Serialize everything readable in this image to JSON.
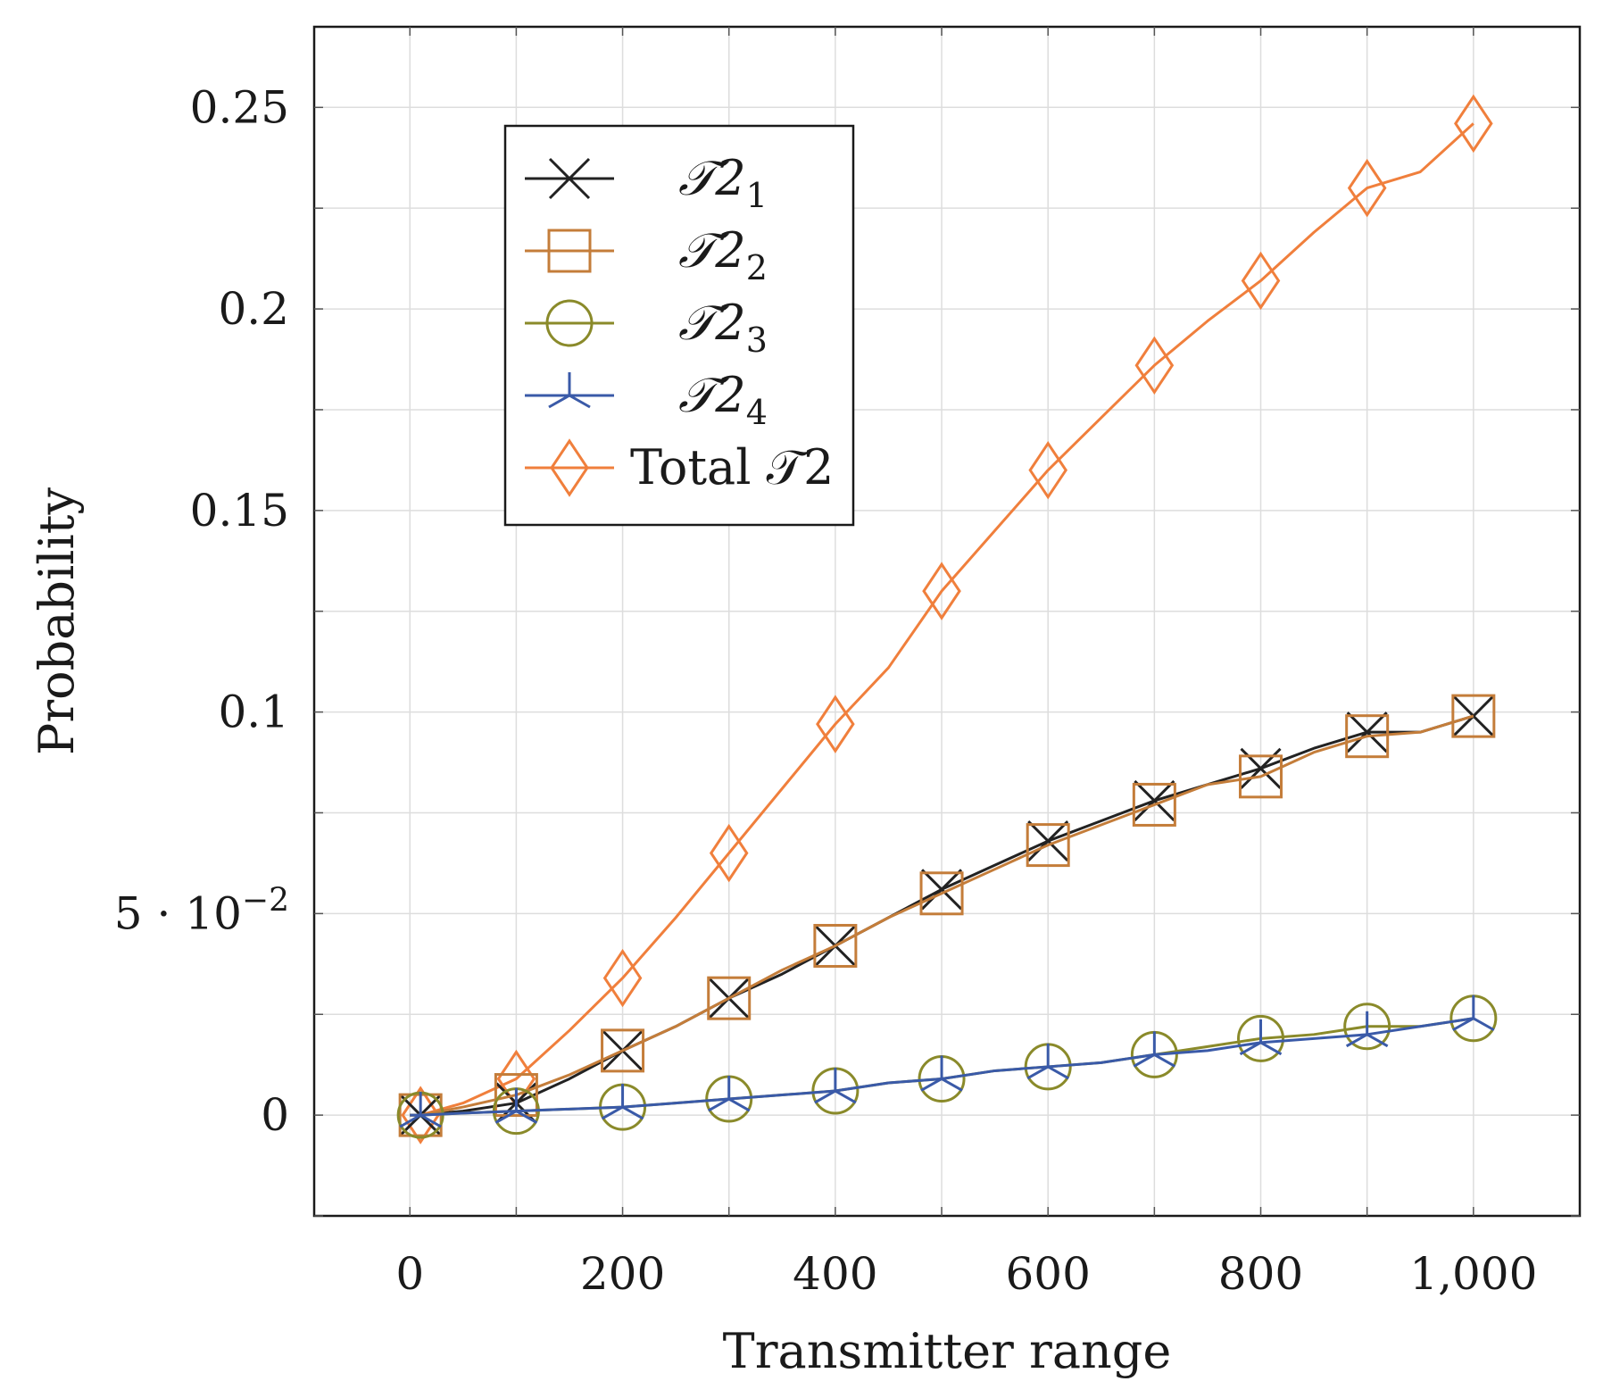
{
  "chart_data": {
    "type": "line",
    "title": "",
    "xlabel": "Transmitter range",
    "ylabel": "Probability",
    "xlim": [
      -90,
      1100
    ],
    "ylim": [
      -0.025,
      0.27
    ],
    "grid": true,
    "legend_position": "top-left",
    "x_ticks": [
      0,
      200,
      400,
      600,
      800,
      1000
    ],
    "x_tick_labels": [
      "0",
      "200",
      "400",
      "600",
      "800",
      "1,000"
    ],
    "y_ticks": [
      0,
      0.05,
      0.1,
      0.15,
      0.2,
      0.25
    ],
    "y_tick_labels": [
      {
        "text": "0"
      },
      {
        "text": "5 · 10",
        "sup": "−2"
      },
      {
        "text": "0.1"
      },
      {
        "text": "0.15"
      },
      {
        "text": "0.2"
      },
      {
        "text": "0.25"
      }
    ],
    "series": [
      {
        "name": "𝒯2",
        "sub": "1",
        "color": "#222222",
        "marker": "x",
        "x": [
          0,
          10,
          50,
          100,
          150,
          200,
          250,
          300,
          350,
          400,
          450,
          500,
          550,
          600,
          650,
          700,
          750,
          800,
          850,
          900,
          950,
          1000
        ],
        "y": [
          0,
          0,
          0.001,
          0.003,
          0.009,
          0.016,
          0.022,
          0.029,
          0.035,
          0.042,
          0.049,
          0.056,
          0.062,
          0.068,
          0.073,
          0.078,
          0.082,
          0.086,
          0.091,
          0.095,
          0.095,
          0.099
        ],
        "marker_x": [
          10,
          100,
          200,
          300,
          400,
          500,
          600,
          700,
          800,
          900,
          1000
        ],
        "marker_y": [
          0,
          0.003,
          0.016,
          0.029,
          0.042,
          0.056,
          0.068,
          0.078,
          0.086,
          0.095,
          0.099
        ]
      },
      {
        "name": "𝒯2",
        "sub": "2",
        "color": "#c47d3a",
        "marker": "square",
        "x": [
          0,
          10,
          50,
          100,
          150,
          200,
          250,
          300,
          350,
          400,
          450,
          500,
          550,
          600,
          650,
          700,
          750,
          800,
          850,
          900,
          950,
          1000
        ],
        "y": [
          0,
          0,
          0.002,
          0.005,
          0.01,
          0.016,
          0.022,
          0.029,
          0.036,
          0.042,
          0.049,
          0.055,
          0.061,
          0.067,
          0.072,
          0.077,
          0.082,
          0.084,
          0.09,
          0.094,
          0.095,
          0.099
        ],
        "marker_x": [
          10,
          100,
          200,
          300,
          400,
          500,
          600,
          700,
          800,
          900,
          1000
        ],
        "marker_y": [
          0,
          0.005,
          0.016,
          0.029,
          0.042,
          0.055,
          0.067,
          0.077,
          0.084,
          0.094,
          0.099
        ]
      },
      {
        "name": "𝒯2",
        "sub": "3",
        "color": "#8a8a2a",
        "marker": "circle",
        "x": [
          0,
          10,
          50,
          100,
          150,
          200,
          250,
          300,
          350,
          400,
          450,
          500,
          550,
          600,
          650,
          700,
          750,
          800,
          850,
          900,
          950,
          1000
        ],
        "y": [
          0,
          0,
          0.0005,
          0.001,
          0.0015,
          0.002,
          0.003,
          0.004,
          0.005,
          0.006,
          0.008,
          0.009,
          0.011,
          0.012,
          0.013,
          0.015,
          0.017,
          0.019,
          0.02,
          0.022,
          0.022,
          0.024
        ],
        "marker_x": [
          10,
          100,
          200,
          300,
          400,
          500,
          600,
          700,
          800,
          900,
          1000
        ],
        "marker_y": [
          0,
          0.001,
          0.002,
          0.004,
          0.006,
          0.009,
          0.012,
          0.015,
          0.019,
          0.022,
          0.024
        ]
      },
      {
        "name": "𝒯2",
        "sub": "4",
        "color": "#3a5aa8",
        "marker": "tri",
        "x": [
          0,
          10,
          50,
          100,
          150,
          200,
          250,
          300,
          350,
          400,
          450,
          500,
          550,
          600,
          650,
          700,
          750,
          800,
          850,
          900,
          950,
          1000
        ],
        "y": [
          0,
          0,
          0.0005,
          0.001,
          0.0015,
          0.002,
          0.003,
          0.004,
          0.005,
          0.006,
          0.008,
          0.009,
          0.011,
          0.012,
          0.013,
          0.015,
          0.016,
          0.018,
          0.019,
          0.02,
          0.022,
          0.024
        ],
        "marker_x": [
          10,
          100,
          200,
          300,
          400,
          500,
          600,
          700,
          800,
          900,
          1000
        ],
        "marker_y": [
          0,
          0.001,
          0.002,
          0.004,
          0.006,
          0.009,
          0.012,
          0.015,
          0.018,
          0.02,
          0.024
        ]
      },
      {
        "name": "Total 𝒯2",
        "sub": "",
        "color": "#f07f3c",
        "marker": "diamond",
        "x": [
          0,
          10,
          50,
          100,
          150,
          200,
          250,
          300,
          350,
          400,
          450,
          500,
          550,
          600,
          650,
          700,
          750,
          800,
          850,
          900,
          950,
          1000
        ],
        "y": [
          0,
          0,
          0.003,
          0.009,
          0.021,
          0.034,
          0.049,
          0.065,
          0.081,
          0.097,
          0.111,
          0.13,
          0.145,
          0.16,
          0.173,
          0.186,
          0.197,
          0.207,
          0.219,
          0.23,
          0.234,
          0.246
        ],
        "marker_x": [
          10,
          100,
          200,
          300,
          400,
          500,
          600,
          700,
          800,
          900,
          1000
        ],
        "marker_y": [
          0,
          0.009,
          0.034,
          0.065,
          0.097,
          0.13,
          0.16,
          0.186,
          0.207,
          0.23,
          0.246
        ]
      }
    ]
  }
}
